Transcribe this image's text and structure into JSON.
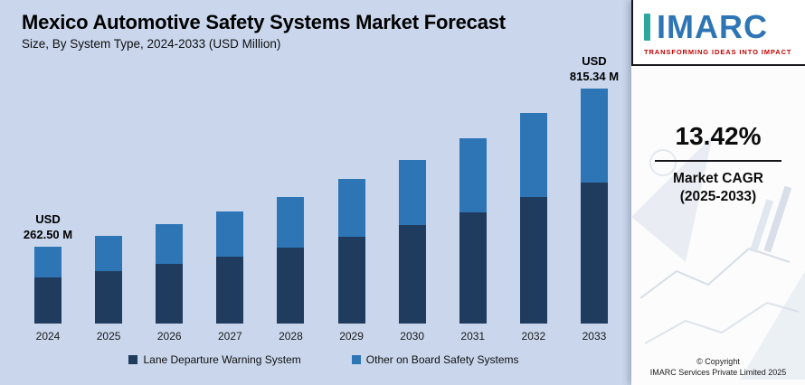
{
  "header": {
    "title": "Mexico Automotive Safety Systems Market Forecast",
    "subtitle": "Size, By System Type, 2024-2033 (USD Million)"
  },
  "chart_data": {
    "type": "bar",
    "stacked": true,
    "title": "Mexico Automotive Safety Systems Market Forecast",
    "subtitle": "Size, By System Type, 2024-2033 (USD Million)",
    "unit": "USD Million",
    "categories": [
      "2024",
      "2025",
      "2026",
      "2027",
      "2028",
      "2029",
      "2030",
      "2031",
      "2032",
      "2033"
    ],
    "series": [
      {
        "name": "Lane Departure Warning System",
        "color": "#1f3b5e",
        "values": [
          157.5,
          178.64,
          202.62,
          229.81,
          260.65,
          295.63,
          335.3,
          380.3,
          431.33,
          489.2
        ]
      },
      {
        "name": "Other on Board Safety Systems",
        "color": "#2e75b6",
        "values": [
          105.0,
          119.1,
          135.08,
          153.2,
          173.76,
          197.08,
          223.53,
          253.53,
          287.56,
          326.14
        ]
      }
    ],
    "totals": [
      262.5,
      297.74,
      337.7,
      383.01,
      434.41,
      492.71,
      558.83,
      633.83,
      718.89,
      815.34
    ],
    "annotations": [
      {
        "category": "2024",
        "lines": [
          "USD",
          "262.50 M"
        ]
      },
      {
        "category": "2033",
        "lines": [
          "USD",
          "815.34 M"
        ]
      }
    ],
    "ylim": [
      0,
      850
    ],
    "grid": false,
    "legend_position": "bottom"
  },
  "right_panel": {
    "logo_text": "IMARC",
    "tagline": "TRANSFORMING IDEAS INTO IMPACT",
    "cagr_value": "13.42%",
    "cagr_label": "Market CAGR",
    "cagr_range": "(2025-2033)",
    "copyright_line1": "© Copyright",
    "copyright_line2": "IMARC Services Private Limited 2025"
  },
  "colors": {
    "background": "#c9d6ec",
    "series_dark": "#1f3b5e",
    "series_blue": "#2e75b6",
    "accent_red": "#c00000",
    "accent_teal": "#2aa79e"
  }
}
